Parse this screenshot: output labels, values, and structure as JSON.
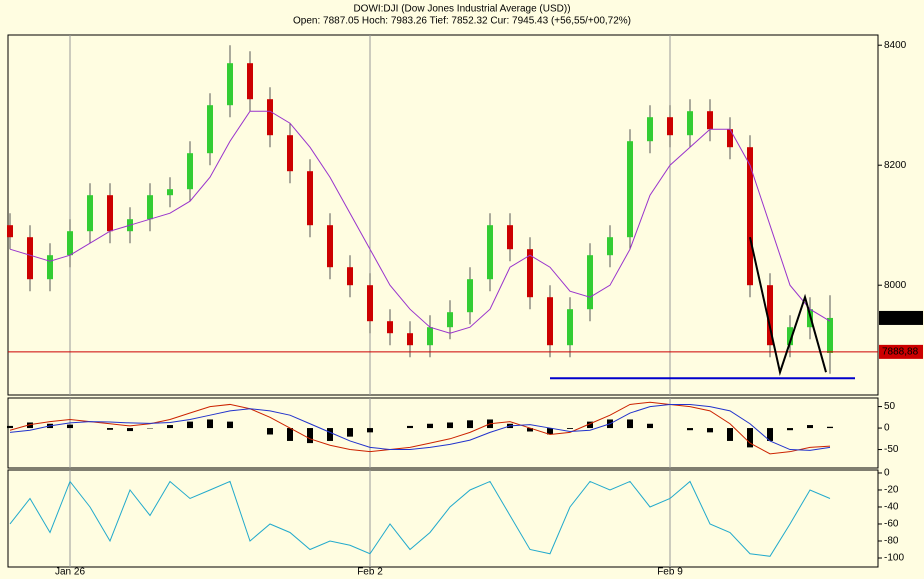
{
  "chart_data": [
    {
      "type": "candlestick",
      "title": "DOWI:DJI (Dow Jones Industrial Average (USD))",
      "subtitle": "Open: 7887.05 Hoch: 7983.26 Tief: 7852.32 Cur: 7945.43 (+56,55/+00,72%)",
      "categories": [
        null,
        null,
        null,
        "Jan 26",
        null,
        null,
        null,
        null,
        null,
        null,
        null,
        null,
        null,
        null,
        null,
        null,
        null,
        null,
        "Feb 2",
        null,
        null,
        null,
        null,
        null,
        null,
        null,
        null,
        null,
        null,
        null,
        null,
        null,
        null,
        "Feb 9",
        null,
        null,
        null,
        null,
        null,
        null,
        null,
        null
      ],
      "open": [
        8100,
        8080,
        8010,
        8050,
        8090,
        8150,
        8090,
        8110,
        8150,
        8160,
        8220,
        8300,
        8370,
        8310,
        8250,
        8190,
        8100,
        8030,
        8000,
        7940,
        7920,
        7900,
        7930,
        7955,
        8010,
        8100,
        8060,
        7980,
        7900,
        7960,
        8050,
        8080,
        8240,
        8280,
        8250,
        8290,
        8260,
        8230,
        8000,
        7900,
        7930,
        7887.05
      ],
      "high": [
        8120,
        8100,
        8070,
        8110,
        8170,
        8170,
        8130,
        8170,
        8180,
        8240,
        8320,
        8400,
        8390,
        8330,
        8270,
        8210,
        8120,
        8050,
        8020,
        7960,
        7940,
        7950,
        7975,
        8030,
        8120,
        8120,
        8080,
        8000,
        7980,
        8070,
        8100,
        8260,
        8300,
        8300,
        8310,
        8310,
        8280,
        8250,
        8020,
        7950,
        7980,
        7983.26
      ],
      "low": [
        8060,
        7990,
        7990,
        8030,
        8070,
        8070,
        8070,
        8090,
        8130,
        8140,
        8200,
        8280,
        8290,
        8230,
        8170,
        8080,
        8010,
        7980,
        7920,
        7900,
        7880,
        7880,
        7910,
        7935,
        7990,
        8040,
        7960,
        7880,
        7880,
        7940,
        8030,
        8060,
        8220,
        8230,
        8230,
        8240,
        8210,
        7980,
        7880,
        7880,
        7910,
        7852.32
      ],
      "close": [
        8080,
        8010,
        8050,
        8090,
        8150,
        8090,
        8110,
        8150,
        8160,
        8220,
        8300,
        8370,
        8310,
        8250,
        8190,
        8100,
        8030,
        8000,
        7940,
        7920,
        7900,
        7930,
        7955,
        8010,
        8100,
        8060,
        7980,
        7900,
        7960,
        8050,
        8080,
        8240,
        8280,
        8250,
        8290,
        8260,
        8230,
        8000,
        7900,
        7930,
        7960,
        7945.43
      ],
      "up_color": "#33cc33",
      "down_color": "#cc0000",
      "ma": {
        "color": "#9933cc",
        "values": [
          8060,
          8050,
          8040,
          8050,
          8070,
          8090,
          8100,
          8110,
          8120,
          8140,
          8180,
          8240,
          8290,
          8290,
          8270,
          8230,
          8180,
          8120,
          8060,
          8000,
          7960,
          7930,
          7920,
          7930,
          7960,
          8030,
          8050,
          8030,
          7990,
          7980,
          8000,
          8060,
          8150,
          8200,
          8230,
          8260,
          8260,
          8200,
          8100,
          8000,
          7960,
          7940
        ]
      },
      "pattern": {
        "color": "#000000",
        "x": [
          37,
          38.5,
          39.75,
          40.8
        ],
        "y": [
          8080,
          7855,
          7980,
          7855
        ]
      },
      "support": {
        "color": "#0000cc",
        "x": [
          27,
          42.25
        ],
        "y": [
          7845,
          7845
        ]
      },
      "markers": [
        {
          "value": 7945.43,
          "label": "7945,43",
          "color": "#000000"
        },
        {
          "value": 7888.88,
          "label": "7888,88",
          "color": "#cc0000"
        }
      ],
      "ylim": [
        7817,
        8417
      ],
      "yticks": [
        8000,
        8200,
        8400
      ]
    },
    {
      "type": "macd",
      "series": [
        {
          "name": "MACD",
          "color": "#cc2200",
          "values": [
            -5,
            8,
            15,
            20,
            15,
            10,
            5,
            10,
            20,
            35,
            50,
            55,
            45,
            25,
            0,
            -25,
            -40,
            -50,
            -55,
            -50,
            -45,
            -35,
            -25,
            -10,
            10,
            15,
            0,
            -15,
            -10,
            10,
            30,
            55,
            60,
            55,
            50,
            40,
            10,
            -35,
            -60,
            -55,
            -45,
            -42
          ]
        },
        {
          "name": "Signal",
          "color": "#2233cc",
          "values": [
            -10,
            -5,
            5,
            12,
            15,
            14,
            12,
            11,
            13,
            20,
            30,
            40,
            45,
            40,
            30,
            10,
            -10,
            -30,
            -45,
            -50,
            -50,
            -45,
            -38,
            -28,
            -10,
            5,
            8,
            0,
            -8,
            -5,
            10,
            35,
            50,
            55,
            55,
            50,
            40,
            10,
            -30,
            -50,
            -52,
            -45
          ]
        }
      ],
      "histogram": {
        "color": "#000000",
        "values": [
          5,
          13,
          10,
          8,
          0,
          -4,
          -7,
          -1,
          7,
          15,
          20,
          15,
          0,
          -15,
          -30,
          -35,
          -30,
          -20,
          -10,
          0,
          5,
          10,
          13,
          18,
          20,
          10,
          -8,
          -15,
          -2,
          15,
          20,
          20,
          10,
          0,
          -5,
          -10,
          -30,
          -45,
          -30,
          -5,
          7,
          3
        ]
      },
      "ylim": [
        -93,
        70
      ],
      "yticks": [
        -50,
        0,
        50
      ]
    },
    {
      "type": "line",
      "series": [
        {
          "name": "Williams %R",
          "color": "#22aacc",
          "values": [
            -60,
            -30,
            -70,
            -10,
            -40,
            -80,
            -20,
            -50,
            -10,
            -30,
            -20,
            -10,
            -80,
            -60,
            -70,
            -90,
            -80,
            -85,
            -95,
            -60,
            -90,
            -70,
            -40,
            -20,
            -10,
            -50,
            -90,
            -95,
            -40,
            -10,
            -20,
            -10,
            -40,
            -30,
            -10,
            -60,
            -70,
            -95,
            -98,
            -60,
            -20,
            -30
          ]
        }
      ],
      "ylim": [
        -110.6,
        3.5
      ],
      "yticks": [
        -100,
        -80,
        -60,
        -40,
        -20,
        0
      ]
    }
  ]
}
